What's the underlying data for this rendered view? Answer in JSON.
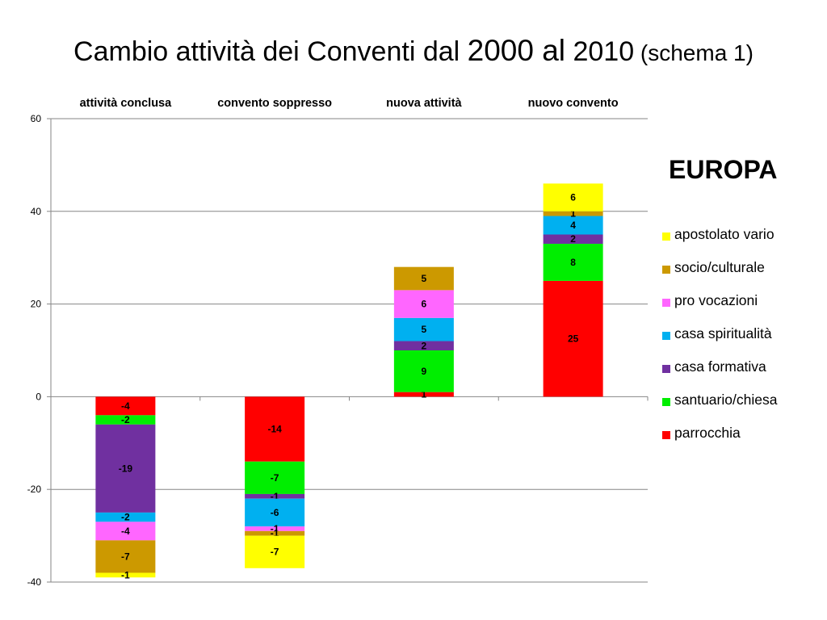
{
  "title": {
    "part1": "Cambio attività dei Conventi dal ",
    "part2": "2000 al",
    "part3": " 2010",
    "part4": " (schema 1)"
  },
  "region_label": "EUROPA",
  "colors": {
    "parrocchia": "#ff0000",
    "santuario_chiesa": "#00ee00",
    "casa_formativa": "#7030a0",
    "casa_spiritualita": "#00b0f0",
    "pro_vocazioni": "#ff66ff",
    "socio_culturale": "#cc9900",
    "apostolato_vario": "#ffff00"
  },
  "chart_data": {
    "type": "bar",
    "stacked": true,
    "categories": [
      "attività conclusa",
      "convento soppresso",
      "nuova attività",
      "nuovo convento"
    ],
    "category_axis_position": "top",
    "ylim": [
      -40,
      60
    ],
    "yticks": [
      -40,
      -20,
      0,
      20,
      40,
      60
    ],
    "grid": true,
    "legend_position": "right",
    "series": [
      {
        "name": "parrocchia",
        "color": "#ff0000",
        "values": [
          -4,
          -14,
          1,
          25
        ]
      },
      {
        "name": "santuario/chiesa",
        "color": "#00ee00",
        "values": [
          -2,
          -7,
          9,
          8
        ]
      },
      {
        "name": "casa formativa",
        "color": "#7030a0",
        "values": [
          -19,
          -1,
          2,
          2
        ]
      },
      {
        "name": "casa spiritualità",
        "color": "#00b0f0",
        "values": [
          -2,
          -6,
          5,
          4
        ]
      },
      {
        "name": "pro vocazioni",
        "color": "#ff66ff",
        "values": [
          -4,
          -1,
          6,
          0
        ]
      },
      {
        "name": "socio/culturale",
        "color": "#cc9900",
        "values": [
          -7,
          -1,
          5,
          1
        ]
      },
      {
        "name": "apostolato vario",
        "color": "#ffff00",
        "values": [
          -1,
          -7,
          0,
          6
        ]
      }
    ],
    "legend_order": [
      "apostolato vario",
      "socio/culturale",
      "pro vocazioni",
      "casa spiritualità",
      "casa formativa",
      "santuario/chiesa",
      "parrocchia"
    ]
  }
}
